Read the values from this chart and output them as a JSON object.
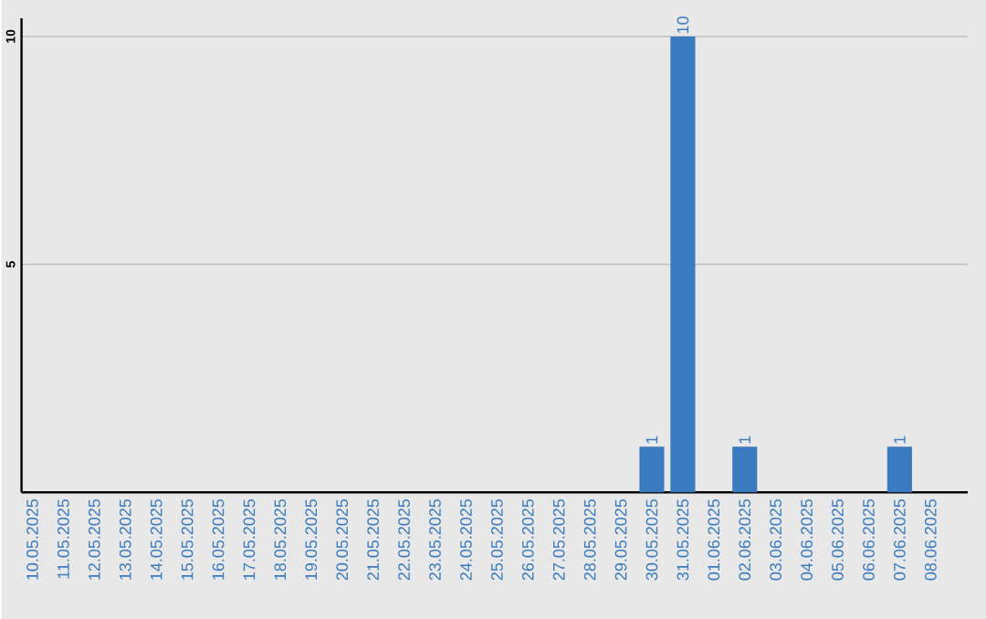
{
  "chart_data": {
    "type": "bar",
    "categories": [
      "10.05.2025",
      "11.05.2025",
      "12.05.2025",
      "13.05.2025",
      "14.05.2025",
      "15.05.2025",
      "16.05.2025",
      "17.05.2025",
      "18.05.2025",
      "19.05.2025",
      "20.05.2025",
      "21.05.2025",
      "22.05.2025",
      "23.05.2025",
      "24.05.2025",
      "25.05.2025",
      "26.05.2025",
      "27.05.2025",
      "28.05.2025",
      "29.05.2025",
      "30.05.2025",
      "31.05.2025",
      "01.06.2025",
      "02.06.2025",
      "03.06.2025",
      "04.06.2025",
      "05.06.2025",
      "06.06.2025",
      "07.06.2025",
      "08.06.2025"
    ],
    "values": [
      0,
      0,
      0,
      0,
      0,
      0,
      0,
      0,
      0,
      0,
      0,
      0,
      0,
      0,
      0,
      0,
      0,
      0,
      0,
      0,
      1,
      10,
      0,
      1,
      0,
      0,
      0,
      0,
      1,
      0
    ],
    "value_labels": [
      null,
      null,
      null,
      null,
      null,
      null,
      null,
      null,
      null,
      null,
      null,
      null,
      null,
      null,
      null,
      null,
      null,
      null,
      null,
      null,
      "1",
      "10",
      null,
      "1",
      null,
      null,
      null,
      null,
      "1",
      null
    ],
    "color": "#3a7bbf",
    "ylim": [
      0,
      10.4
    ],
    "yticks": [
      5,
      10
    ],
    "grid": "y"
  }
}
